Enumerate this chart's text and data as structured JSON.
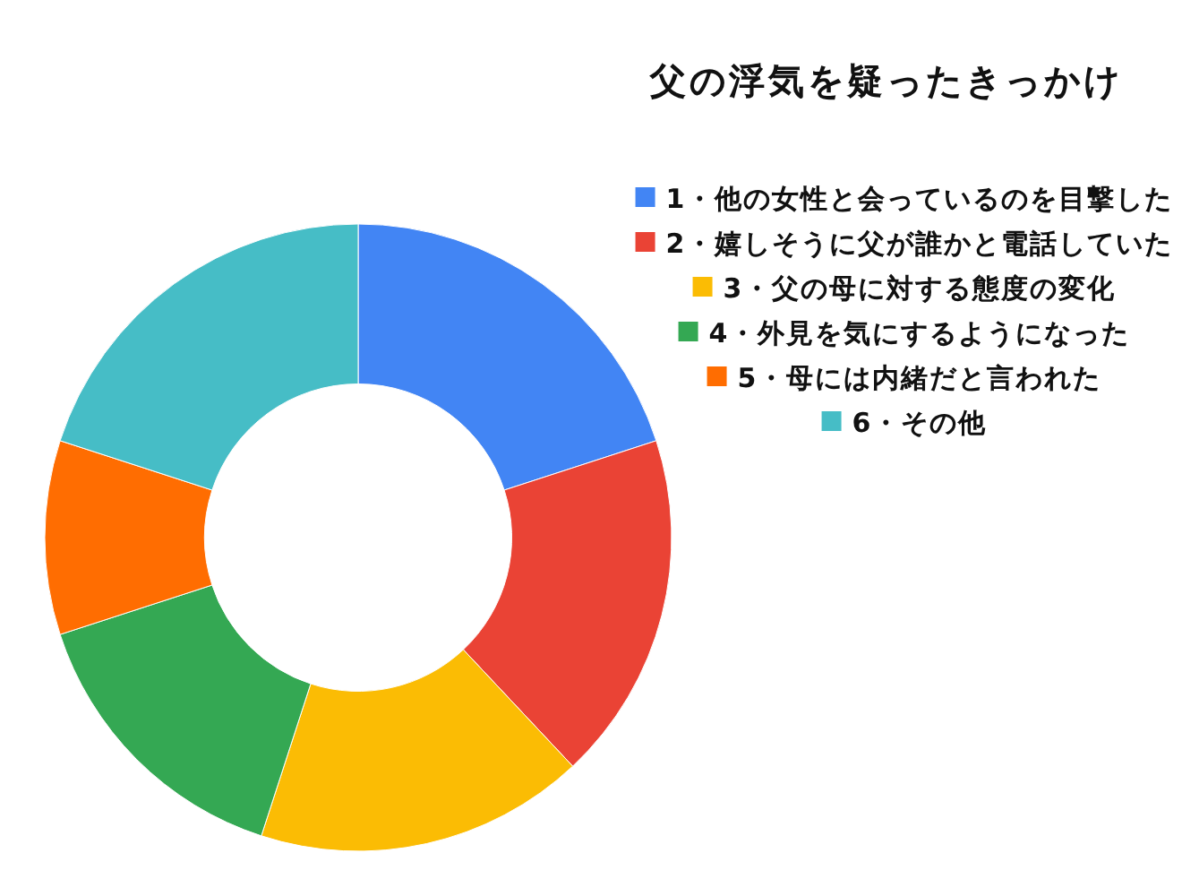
{
  "chart_data": {
    "type": "donut",
    "title": "父の浮気を疑ったきっかけ",
    "categories": [
      "1・他の女性と会っているのを目撃した",
      "2・嬉しそうに父が誰かと電話していた",
      "3・父の母に対する態度の変化",
      "4・外見を気にするようになった",
      "5・母には内緒だと言われた",
      "6・その他"
    ],
    "values": [
      20,
      18,
      17,
      15,
      10,
      20
    ],
    "colors": [
      "#4285f4",
      "#ea4335",
      "#fbbc04",
      "#34a853",
      "#ff6d01",
      "#46bdc6"
    ],
    "legend": "top right"
  }
}
